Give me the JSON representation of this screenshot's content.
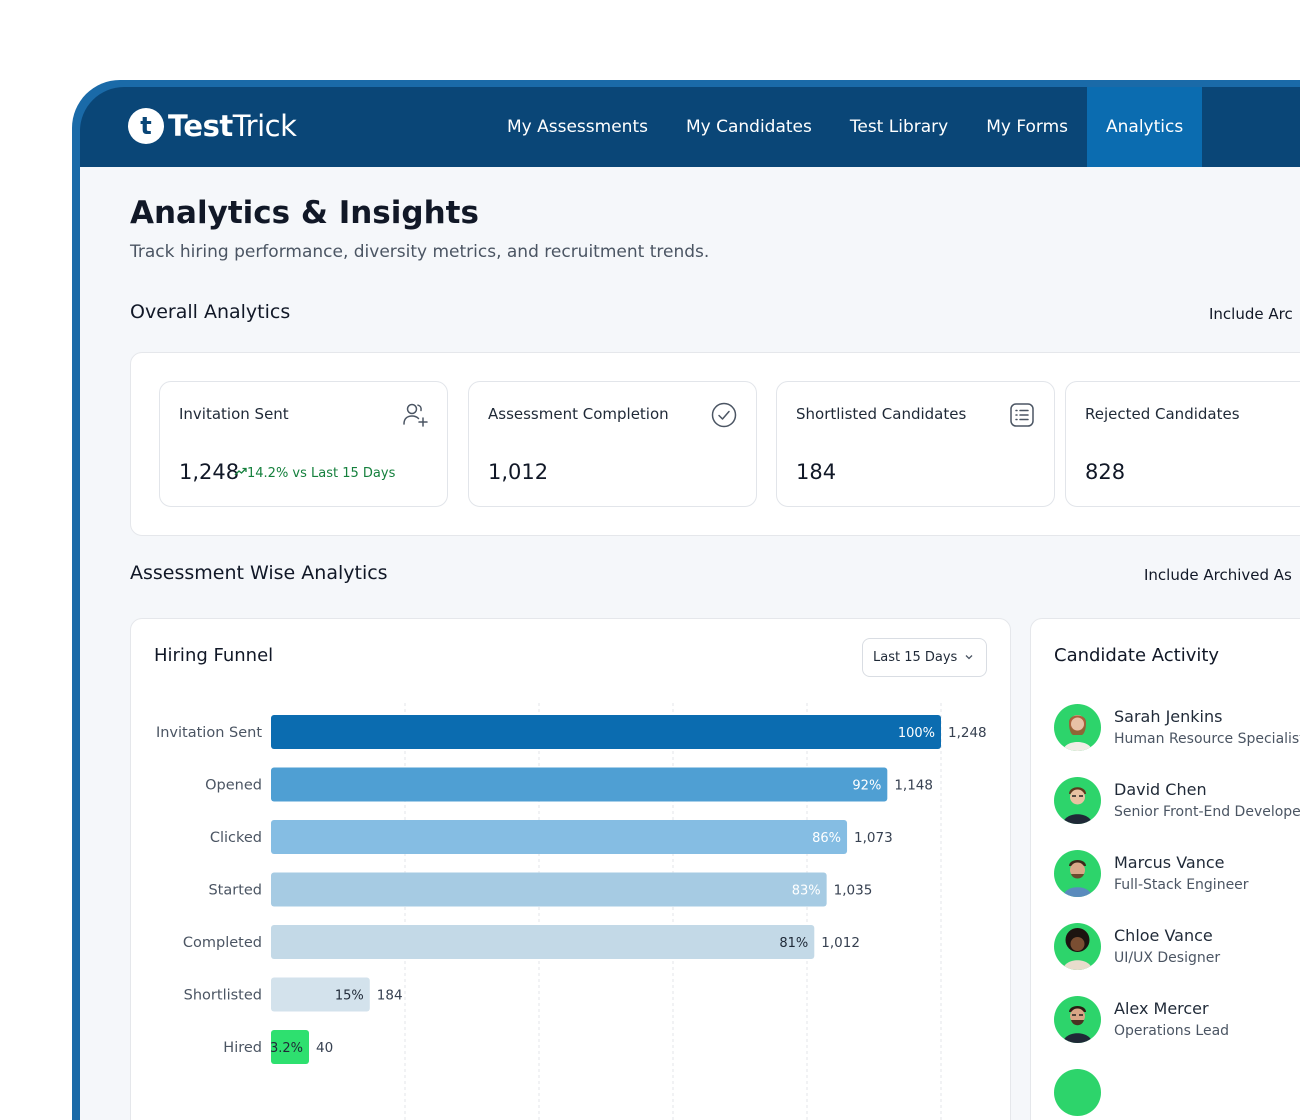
{
  "brand": {
    "mark": "t",
    "name_bold": "Test",
    "name_light": "Trick"
  },
  "nav": {
    "items": [
      {
        "label": "My Assessments"
      },
      {
        "label": "My Candidates"
      },
      {
        "label": "Test Library"
      },
      {
        "label": "My Forms"
      },
      {
        "label": "Analytics",
        "active": true
      }
    ]
  },
  "page": {
    "title": "Analytics & Insights",
    "subtitle": "Track hiring performance, diversity metrics, and recruitment trends."
  },
  "overall": {
    "title": "Overall Analytics",
    "right_label": "Include Arc",
    "stats": [
      {
        "label": "Invitation Sent",
        "value": "1,248",
        "trend": "14.2% vs Last 15 Days",
        "icon": "user-add-icon"
      },
      {
        "label": "Assessment Completion",
        "value": "1,012",
        "icon": "check-circle-icon"
      },
      {
        "label": "Shortlisted Candidates",
        "value": "184",
        "icon": "list-icon"
      },
      {
        "label": "Rejected Candidates",
        "value": "828",
        "icon": "reject-icon"
      }
    ]
  },
  "assessment": {
    "title": "Assessment Wise Analytics",
    "right_label": "Include Archived As"
  },
  "funnel": {
    "title": "Hiring Funnel",
    "range": "Last 15 Days",
    "colors": [
      "#0b6cb0",
      "#4f9fd3",
      "#85bde3",
      "#a6cbe3",
      "#c3d9e7",
      "#d3e2ec",
      "#2ee06f"
    ]
  },
  "chart_data": {
    "type": "bar",
    "orientation": "horizontal",
    "title": "Hiring Funnel",
    "categories": [
      "Invitation Sent",
      "Opened",
      "Clicked",
      "Started",
      "Completed",
      "Shortlisted",
      "Hired"
    ],
    "values": [
      1248,
      1148,
      1073,
      1035,
      1012,
      184,
      40
    ],
    "value_labels": [
      "1,248",
      "1,148",
      "1,073",
      "1,035",
      "1,012",
      "184",
      "40"
    ],
    "percent_labels": [
      "100%",
      "92%",
      "86%",
      "83%",
      "81%",
      "15%",
      "3.2%"
    ],
    "xlim": [
      0,
      1248
    ],
    "grid": true
  },
  "activity": {
    "title": "Candidate Activity",
    "people": [
      {
        "name": "Sarah Jenkins",
        "role": "Human Resource Specialist"
      },
      {
        "name": "David Chen",
        "role": "Senior Front-End Developer"
      },
      {
        "name": "Marcus Vance",
        "role": "Full-Stack Engineer"
      },
      {
        "name": "Chloe Vance",
        "role": "UI/UX Designer"
      },
      {
        "name": "Alex Mercer",
        "role": "Operations Lead"
      }
    ]
  }
}
